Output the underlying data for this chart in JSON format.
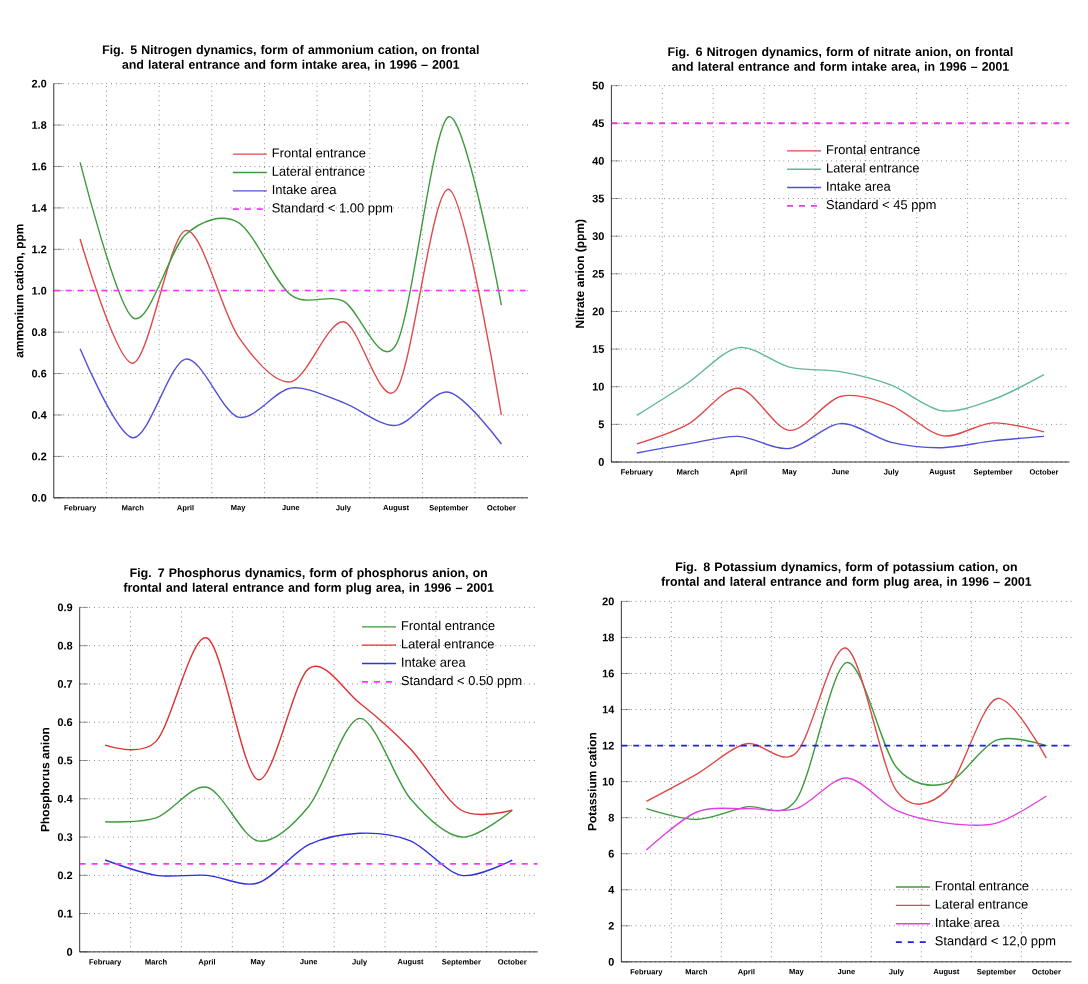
{
  "chart_data": [
    {
      "type": "line",
      "title": "Fig. 5 Nitrogen dynamics, form of ammonium cation, on frontal and lateral entrance and form intake area, in 1996 – 2001",
      "ylabel": "ammonium cation, ppm",
      "categories": [
        "February",
        "March",
        "April",
        "May",
        "June",
        "July",
        "August",
        "September",
        "October"
      ],
      "series": [
        {
          "name": "Frontal entrance",
          "color": "#e04848",
          "values": [
            1.25,
            0.65,
            1.29,
            0.78,
            0.56,
            0.85,
            0.52,
            1.49,
            0.4
          ]
        },
        {
          "name": "Lateral entrance",
          "color": "#3c9a3c",
          "values": [
            1.62,
            0.87,
            1.27,
            1.33,
            0.98,
            0.95,
            0.74,
            1.84,
            0.93
          ]
        },
        {
          "name": "Intake area",
          "color": "#5050d8",
          "values": [
            0.72,
            0.29,
            0.67,
            0.39,
            0.53,
            0.46,
            0.35,
            0.51,
            0.26
          ]
        }
      ],
      "ylim": [
        0,
        2
      ],
      "yticks": [
        {
          "value": 0,
          "label": "0.0"
        },
        {
          "value": 0.2,
          "label": "0.2"
        },
        {
          "value": 0.4,
          "label": "0.4"
        },
        {
          "value": 0.6,
          "label": "0.6"
        },
        {
          "value": 0.8,
          "label": "0.8"
        },
        {
          "value": 1,
          "label": "1.0"
        },
        {
          "value": 1.2,
          "label": "1.2"
        },
        {
          "value": 1.4,
          "label": "1.4"
        },
        {
          "value": 1.6,
          "label": "1.6"
        },
        {
          "value": 1.8,
          "label": "1.8"
        },
        {
          "value": 2,
          "label": "2.0"
        }
      ],
      "grid": true,
      "legend": "top",
      "ref_lines": [
        {
          "axis": "y",
          "value": 1,
          "label": "Standard < 1.00 ppm",
          "color": "#ff33ff",
          "line_style": "dashed"
        }
      ]
    },
    {
      "type": "line",
      "title": "Fig. 6 Nitrogen dynamics, form of nitrate anion, on frontal and lateral entrance and form intake area, in 1996 – 2001",
      "ylabel": "Nitrate anion (ppm)",
      "categories": [
        "February",
        "March",
        "April",
        "May",
        "June",
        "July",
        "August",
        "September",
        "October"
      ],
      "series": [
        {
          "name": "Frontal entrance",
          "color": "#e04848",
          "values": [
            2.4,
            5,
            9.8,
            4.2,
            8.7,
            7.5,
            3.5,
            5.2,
            4
          ]
        },
        {
          "name": "Lateral entrance",
          "color": "#5fb89a",
          "values": [
            6.2,
            10.5,
            15.2,
            12.6,
            12,
            10.2,
            6.8,
            8.3,
            11.6
          ]
        },
        {
          "name": "Intake area",
          "color": "#5050d8",
          "values": [
            1.2,
            2.4,
            3.4,
            1.8,
            5.1,
            2.6,
            1.9,
            2.8,
            3.4
          ]
        }
      ],
      "ylim": [
        0,
        50
      ],
      "yticks": [
        0,
        5,
        10,
        15,
        20,
        25,
        30,
        35,
        40,
        45,
        50
      ],
      "grid": true,
      "legend": "top",
      "ref_lines": [
        {
          "axis": "y",
          "value": 45,
          "label": "Standard < 45 ppm",
          "color": "#e040e0",
          "line_style": "dashed"
        }
      ]
    },
    {
      "type": "line",
      "title": "Fig. 7 Phosphorus dynamics, form of phosphorus anion, on frontal and lateral entrance and form plug area, in 1996 – 2001",
      "ylabel": "Phosphorus anion",
      "categories": [
        "February",
        "March",
        "April",
        "May",
        "June",
        "July",
        "August",
        "September",
        "October"
      ],
      "series": [
        {
          "name": "Frontal entrance",
          "color": "#3c9a3c",
          "values": [
            0.34,
            0.35,
            0.43,
            0.29,
            0.38,
            0.61,
            0.4,
            0.3,
            0.37
          ]
        },
        {
          "name": "Lateral entrance",
          "color": "#e03030",
          "values": [
            0.54,
            0.55,
            0.82,
            0.45,
            0.74,
            0.65,
            0.53,
            0.37,
            0.37
          ]
        },
        {
          "name": "Intake area",
          "color": "#3030e0",
          "values": [
            0.24,
            0.2,
            0.2,
            0.18,
            0.28,
            0.31,
            0.29,
            0.2,
            0.24
          ]
        }
      ],
      "ylim": [
        0,
        0.9
      ],
      "yticks": [
        0,
        0.1,
        0.2,
        0.3,
        0.4,
        0.5,
        0.6,
        0.7,
        0.8,
        0.9
      ],
      "grid": true,
      "legend": "top right",
      "ref_lines": [
        {
          "axis": "y",
          "value": 0.23,
          "label": "Standard < 0.50 ppm",
          "color": "#ff33ff",
          "line_style": "dashed"
        }
      ]
    },
    {
      "type": "line",
      "title": "Fig. 8 Potassium dynamics, form of potassium cation, on frontal and lateral entrance and form plug area, in 1996 – 2001",
      "ylabel": "Potassium cation",
      "categories": [
        "February",
        "March",
        "April",
        "May",
        "June",
        "July",
        "August",
        "September",
        "October"
      ],
      "series": [
        {
          "name": "Frontal entrance",
          "color": "#3c9a3c",
          "values": [
            8.5,
            7.9,
            8.6,
            9,
            16.6,
            10.8,
            9.9,
            12.3,
            12
          ]
        },
        {
          "name": "Lateral entrance",
          "color": "#e04848",
          "values": [
            8.9,
            10.4,
            12.1,
            11.6,
            17.4,
            9.5,
            9.5,
            14.6,
            11.3
          ]
        },
        {
          "name": "Intake area",
          "color": "#e040e0",
          "values": [
            6.2,
            8.3,
            8.5,
            8.5,
            10.2,
            8.4,
            7.7,
            7.7,
            9.2
          ]
        }
      ],
      "ylim": [
        0,
        20
      ],
      "yticks": [
        0,
        2,
        4,
        6,
        8,
        10,
        12,
        14,
        16,
        18,
        20
      ],
      "grid": true,
      "legend": "bottom right",
      "ref_lines": [
        {
          "axis": "y",
          "value": 12,
          "label": "Standard < 12,0 ppm",
          "color": "#2020e0",
          "line_style": "dashed"
        }
      ]
    }
  ]
}
